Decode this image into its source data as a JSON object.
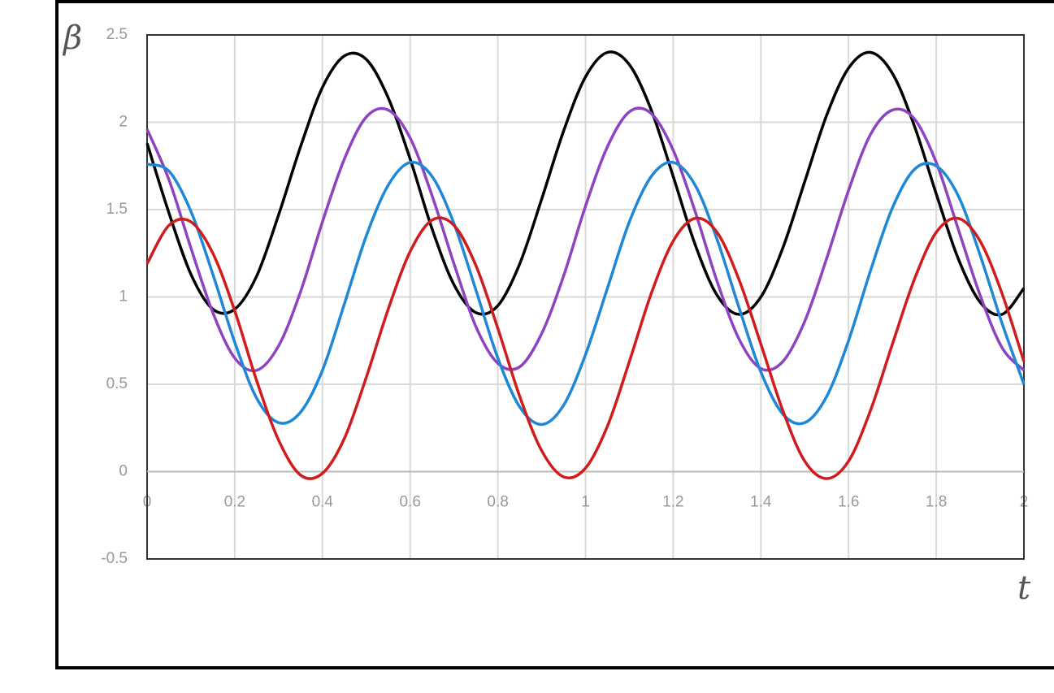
{
  "chart_data": {
    "type": "line",
    "y_label": "β",
    "x_label": "t",
    "x": [
      0,
      0.05,
      0.1,
      0.15,
      0.2,
      0.25,
      0.3,
      0.35,
      0.4,
      0.45,
      0.5,
      0.55,
      0.6,
      0.65,
      0.7,
      0.75,
      0.8,
      0.85,
      0.9,
      0.95,
      1,
      1.05,
      1.1,
      1.15,
      1.2,
      1.25,
      1.3,
      1.35,
      1.4,
      1.45,
      1.5,
      1.55,
      1.6,
      1.65,
      1.7,
      1.75,
      1.8,
      1.85,
      1.9,
      1.95,
      2
    ],
    "series": [
      {
        "color": "#000000",
        "values": [
          1.88,
          1.48,
          1.13,
          0.93,
          0.93,
          1.12,
          1.47,
          1.86,
          2.2,
          2.38,
          2.36,
          2.14,
          1.79,
          1.39,
          1.07,
          0.91,
          0.95,
          1.19,
          1.56,
          1.95,
          2.26,
          2.4,
          2.33,
          2.07,
          1.69,
          1.3,
          1.01,
          0.9,
          1.0,
          1.28,
          1.66,
          2.04,
          2.31,
          2.4,
          2.28,
          1.98,
          1.59,
          1.22,
          0.97,
          0.9,
          1.05
        ]
      },
      {
        "color": "#8e44c0",
        "values": [
          1.96,
          1.67,
          1.28,
          0.91,
          0.65,
          0.58,
          0.72,
          1.03,
          1.43,
          1.79,
          2.03,
          2.07,
          1.91,
          1.58,
          1.19,
          0.83,
          0.62,
          0.6,
          0.79,
          1.12,
          1.52,
          1.86,
          2.06,
          2.05,
          1.84,
          1.49,
          1.09,
          0.76,
          0.59,
          0.63,
          0.86,
          1.22,
          1.61,
          1.93,
          2.07,
          2.02,
          1.77,
          1.39,
          1.01,
          0.71,
          0.58
        ]
      },
      {
        "color": "#1e88d6",
        "values": [
          1.76,
          1.72,
          1.49,
          1.13,
          0.74,
          0.42,
          0.28,
          0.34,
          0.58,
          0.96,
          1.35,
          1.64,
          1.77,
          1.69,
          1.42,
          1.04,
          0.65,
          0.37,
          0.27,
          0.38,
          0.67,
          1.05,
          1.43,
          1.69,
          1.77,
          1.64,
          1.33,
          0.94,
          0.57,
          0.33,
          0.28,
          0.43,
          0.75,
          1.15,
          1.51,
          1.73,
          1.75,
          1.58,
          1.24,
          0.85,
          0.5
        ]
      },
      {
        "color": "#d01c1c",
        "values": [
          1.19,
          1.41,
          1.43,
          1.25,
          0.92,
          0.52,
          0.18,
          -0.02,
          -0.01,
          0.19,
          0.54,
          0.93,
          1.26,
          1.44,
          1.41,
          1.18,
          0.82,
          0.43,
          0.12,
          -0.03,
          0.02,
          0.26,
          0.63,
          1.02,
          1.32,
          1.45,
          1.37,
          1.1,
          0.73,
          0.35,
          0.06,
          -0.04,
          0.06,
          0.35,
          0.73,
          1.1,
          1.37,
          1.45,
          1.32,
          1.02,
          0.63
        ]
      }
    ],
    "xlim": [
      0,
      2
    ],
    "ylim": [
      -0.5,
      2.5
    ],
    "xticks": [
      0,
      0.2,
      0.4,
      0.6,
      0.8,
      1,
      1.2,
      1.4,
      1.6,
      1.8,
      2
    ],
    "yticks": [
      -0.5,
      0,
      0.5,
      1,
      1.5,
      2,
      2.5
    ],
    "grid": true
  }
}
